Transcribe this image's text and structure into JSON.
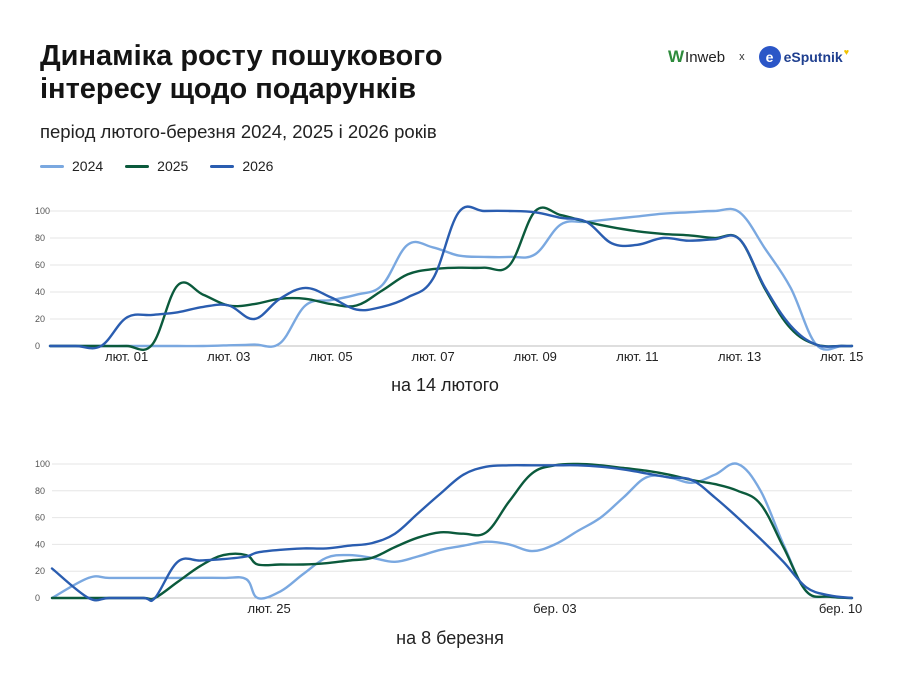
{
  "title": "Динаміка росту пошукового інтересу щодо подарунків",
  "subtitle": "період лютого-березня 2024, 2025 і 2026 років",
  "logos": {
    "inweb_mark": "W",
    "inweb": "Inweb",
    "separator": "x",
    "esputnik_mark": "e",
    "esputnik": "eSputnik",
    "heart": "♥"
  },
  "colors": {
    "2024": "#7aa8e0",
    "2025": "#0b5a3c",
    "2026": "#2a5db0",
    "grid": "#e6e6e6",
    "axis": "#555555"
  },
  "legend": [
    {
      "label": "2024",
      "color": "#7aa8e0"
    },
    {
      "label": "2025",
      "color": "#0b5a3c"
    },
    {
      "label": "2026",
      "color": "#2a5db0"
    }
  ],
  "chart_data": [
    {
      "type": "line",
      "caption": "на 14 лютого",
      "ylim": [
        0,
        100
      ],
      "yticks": [
        0,
        20,
        40,
        60,
        80,
        100
      ],
      "xlim": [
        -0.5,
        15.2
      ],
      "xticks": [
        {
          "x": 1,
          "label": "лют. 01"
        },
        {
          "x": 3,
          "label": "лют. 03"
        },
        {
          "x": 5,
          "label": "лют. 05"
        },
        {
          "x": 7,
          "label": "лют. 07"
        },
        {
          "x": 9,
          "label": "лют. 09"
        },
        {
          "x": 11,
          "label": "лют. 11"
        },
        {
          "x": 13,
          "label": "лют. 13"
        },
        {
          "x": 15,
          "label": "лют. 15"
        }
      ],
      "series": [
        {
          "name": "2024",
          "color": "#7aa8e0",
          "x": [
            -0.5,
            0,
            0.5,
            1,
            1.5,
            2,
            2.5,
            3,
            3.5,
            4,
            4.5,
            5,
            5.5,
            6,
            6.5,
            7,
            7.5,
            8,
            8.5,
            9,
            9.5,
            10,
            10.5,
            11,
            11.5,
            12,
            12.5,
            13,
            13.5,
            14,
            14.5,
            15,
            15.2
          ],
          "y": [
            0,
            0,
            0,
            0,
            0,
            0,
            0,
            0.5,
            1,
            2,
            30,
            34,
            38,
            45,
            75,
            73,
            67,
            66,
            66,
            68,
            90,
            92,
            94,
            96,
            98,
            99,
            100,
            99,
            72,
            43,
            1,
            0,
            0
          ]
        },
        {
          "name": "2025",
          "color": "#0b5a3c",
          "x": [
            -0.5,
            0,
            0.5,
            1,
            1.5,
            2,
            2.5,
            3,
            3.5,
            4,
            4.5,
            5,
            5.5,
            6,
            6.5,
            7,
            7.5,
            8,
            8.5,
            9,
            9.5,
            10,
            10.5,
            11,
            11.5,
            12,
            12.5,
            13,
            13.5,
            14,
            14.5,
            15,
            15.2
          ],
          "y": [
            0,
            0,
            0,
            0,
            1,
            45,
            38,
            30,
            31,
            35,
            35,
            31,
            30,
            41,
            53,
            57,
            58,
            58,
            60,
            100,
            97,
            92,
            88,
            85,
            83,
            82,
            80,
            79,
            42,
            13,
            1,
            0,
            0
          ]
        },
        {
          "name": "2026",
          "color": "#2a5db0",
          "x": [
            -0.5,
            0,
            0.5,
            1,
            1.5,
            2,
            2.5,
            3,
            3.5,
            4,
            4.5,
            5,
            5.5,
            6,
            6.5,
            7,
            7.5,
            8,
            8.5,
            9,
            9.5,
            10,
            10.5,
            11,
            11.5,
            12,
            12.5,
            13,
            13.5,
            14,
            14.5,
            15,
            15.2
          ],
          "y": [
            0,
            0,
            0,
            21,
            23,
            25,
            29,
            30,
            20,
            35,
            43,
            36,
            27,
            29,
            36,
            50,
            99,
            100,
            100,
            99,
            95,
            92,
            76,
            75,
            80,
            78,
            79,
            79,
            43,
            15,
            1,
            0,
            0
          ]
        }
      ]
    },
    {
      "type": "line",
      "caption": "на 8 березня",
      "ylim": [
        0,
        100
      ],
      "yticks": [
        0,
        20,
        40,
        60,
        80,
        100
      ],
      "xlim": [
        0,
        35
      ],
      "xticks": [
        {
          "x": 9.5,
          "label": "лют. 25"
        },
        {
          "x": 22,
          "label": "бер. 03"
        },
        {
          "x": 34.5,
          "label": "бер. 10"
        }
      ],
      "series": [
        {
          "name": "2024",
          "color": "#7aa8e0",
          "x": [
            0,
            1.6,
            2.5,
            4,
            6,
            7.5,
            8.5,
            9,
            10,
            11,
            12,
            13,
            14,
            15,
            16,
            17,
            18,
            19,
            20,
            21,
            22,
            23,
            24,
            25,
            26,
            27,
            28,
            29,
            30,
            31,
            32,
            33,
            34,
            35
          ],
          "y": [
            0,
            15,
            15,
            15,
            15,
            15,
            14,
            0,
            5,
            18,
            30,
            32,
            30,
            27,
            31,
            36,
            39,
            42,
            40,
            35,
            40,
            50,
            60,
            75,
            90,
            90,
            86,
            92,
            100,
            80,
            40,
            5,
            1,
            0
          ]
        },
        {
          "name": "2025",
          "color": "#0b5a3c",
          "x": [
            0,
            1.6,
            2.5,
            4,
            4.5,
            5.5,
            6.5,
            7.5,
            8.5,
            9,
            10,
            11,
            12,
            13,
            14,
            15,
            16,
            17,
            18,
            19,
            20,
            21,
            22,
            23,
            24,
            25,
            26,
            27,
            28,
            29,
            30,
            31,
            32,
            33,
            34,
            35
          ],
          "y": [
            0,
            0,
            0,
            0,
            0,
            12,
            24,
            32,
            32,
            25,
            25,
            25,
            26,
            28,
            30,
            38,
            45,
            49,
            48,
            49,
            72,
            93,
            99,
            100,
            99,
            97,
            95,
            92,
            88,
            85,
            80,
            70,
            38,
            5,
            1,
            0
          ]
        },
        {
          "name": "2026",
          "color": "#2a5db0",
          "x": [
            0,
            1.6,
            2.5,
            4,
            4.5,
            5.5,
            6.5,
            7.5,
            8.5,
            9,
            10,
            11,
            12,
            13,
            14,
            15,
            16,
            17,
            18,
            19,
            20,
            21,
            22,
            23,
            24,
            25,
            26,
            27,
            28,
            29,
            30,
            31,
            32,
            33,
            34,
            35
          ],
          "y": [
            22,
            0,
            0,
            0,
            0,
            27,
            28,
            29,
            31,
            34,
            36,
            37,
            37,
            39,
            41,
            48,
            63,
            78,
            92,
            98,
            99,
            99,
            99,
            99,
            98,
            96,
            93,
            90,
            88,
            75,
            60,
            44,
            27,
            8,
            2,
            0
          ]
        }
      ]
    }
  ]
}
